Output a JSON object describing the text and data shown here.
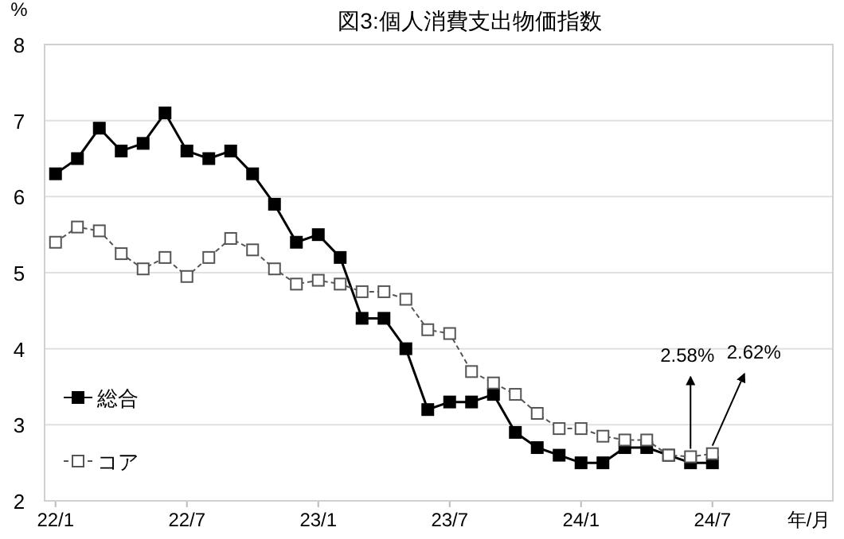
{
  "chart_data": {
    "type": "line",
    "title": "図3:個人消費支出物価指数",
    "ylabel": "%",
    "xlabel": "年/月",
    "categories": [
      "22/1",
      null,
      null,
      null,
      null,
      null,
      "22/7",
      null,
      null,
      null,
      null,
      null,
      "23/1",
      null,
      null,
      null,
      null,
      null,
      "23/7",
      null,
      null,
      null,
      null,
      null,
      "24/1",
      null,
      null,
      null,
      null,
      null,
      "24/7"
    ],
    "series": [
      {
        "name": "総合",
        "color": "#000000",
        "line_style": "solid",
        "values": [
          6.3,
          6.5,
          6.9,
          6.6,
          6.7,
          7.1,
          6.6,
          6.5,
          6.6,
          6.3,
          5.9,
          5.4,
          5.5,
          5.2,
          4.4,
          4.4,
          4.0,
          3.2,
          3.3,
          3.3,
          3.4,
          2.9,
          2.7,
          2.6,
          2.5,
          2.5,
          2.7,
          2.7,
          2.6,
          2.5,
          2.5
        ]
      },
      {
        "name": "コア",
        "color": "#555555",
        "line_style": "dashed",
        "values": [
          5.4,
          5.6,
          5.55,
          5.25,
          5.05,
          5.2,
          4.95,
          5.2,
          5.45,
          5.3,
          5.05,
          4.85,
          4.9,
          4.85,
          4.75,
          4.75,
          4.65,
          4.25,
          4.2,
          3.7,
          3.55,
          3.4,
          3.15,
          2.95,
          2.95,
          2.85,
          2.8,
          2.8,
          2.6,
          2.58,
          2.62
        ]
      }
    ],
    "ylim": [
      2,
      8
    ],
    "yticks": [
      2,
      3,
      4,
      5,
      6,
      7,
      8
    ],
    "grid": "y",
    "legend": "bottom left",
    "marker": "square",
    "annotations": [
      {
        "text": "2.58%",
        "y": 2.58
      },
      {
        "text": "2.62%",
        "x": "24/7",
        "y": 2.62
      }
    ]
  }
}
